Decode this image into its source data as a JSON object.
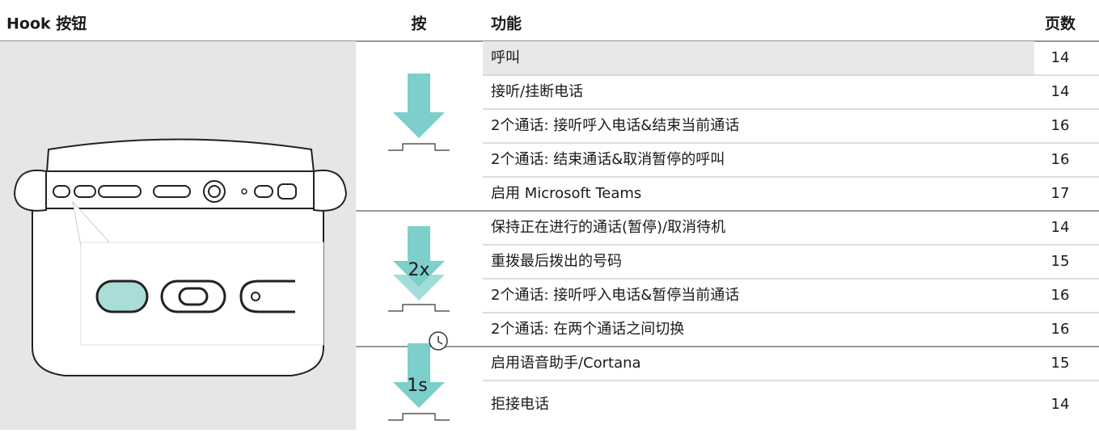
{
  "header": {
    "button": "Hook 按钮",
    "press": "按",
    "function": "功能",
    "page": "页数"
  },
  "groups": [
    {
      "rows": [
        {
          "function": "呼叫",
          "page": 14
        },
        {
          "function": "接听/挂断电话",
          "page": 14
        },
        {
          "function": "2个通话: 接听呼入电话&结束当前通话",
          "page": 16
        },
        {
          "function": "2个通话: 结束通话&取消暂停的呼叫",
          "page": 16
        },
        {
          "function": "启用 Microsoft Teams",
          "page": 17
        }
      ]
    },
    {
      "icon_label": "2x",
      "rows": [
        {
          "function": "保持正在进行的通话(暂停)/取消待机",
          "page": 14
        },
        {
          "function": "重拨最后拨出的号码",
          "page": 15
        },
        {
          "function": "2个通话: 接听呼入电话&暂停当前通话",
          "page": 16
        },
        {
          "function": "2个通话: 在两个通话之间切换",
          "page": 16
        }
      ]
    },
    {
      "icon_label": "1s",
      "rows": [
        {
          "function": "启用语音助手/Cortana",
          "page": 15
        },
        {
          "function": "拒接电话",
          "page": 14
        }
      ]
    }
  ]
}
